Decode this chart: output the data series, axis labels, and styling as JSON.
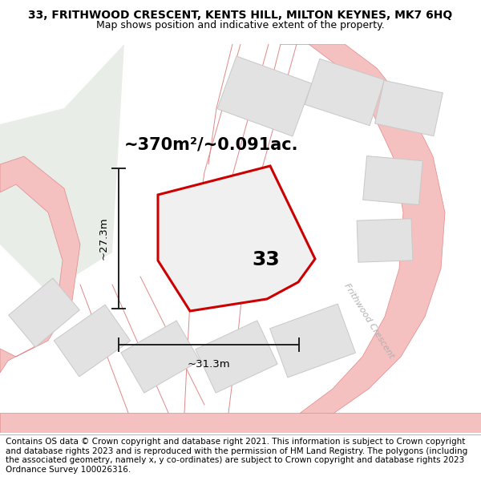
{
  "title": "33, FRITHWOOD CRESCENT, KENTS HILL, MILTON KEYNES, MK7 6HQ",
  "subtitle": "Map shows position and indicative extent of the property.",
  "area_text": "~370m²/~0.091ac.",
  "dim_width": "~31.3m",
  "dim_height": "~27.3m",
  "house_number": "33",
  "footer": "Contains OS data © Crown copyright and database right 2021. This information is subject to Crown copyright and database rights 2023 and is reproduced with the permission of HM Land Registry. The polygons (including the associated geometry, namely x, y co-ordinates) are subject to Crown copyright and database rights 2023 Ordnance Survey 100026316.",
  "bg_color": "#ffffff",
  "map_bg": "#f8f8f8",
  "road_color": "#f5c0c0",
  "road_edge_color": "#e08888",
  "green_area_color": "#e8ede8",
  "plot_fill": "#f0f0f0",
  "plot_edge_color": "#cc0000",
  "plot_edge_width": 2.2,
  "neighbor_fill": "#e2e2e2",
  "neighbor_edge": "#c8c8c8",
  "dim_line_color": "#202020",
  "text_color": "#000000",
  "road_label_color": "#b0b0b0",
  "title_fontsize": 10,
  "subtitle_fontsize": 9,
  "area_fontsize": 15,
  "dim_fontsize": 9.5,
  "label_fontsize": 18,
  "footer_fontsize": 7.5,
  "road_lw": 0.7,
  "neighbor_lw": 0.7
}
